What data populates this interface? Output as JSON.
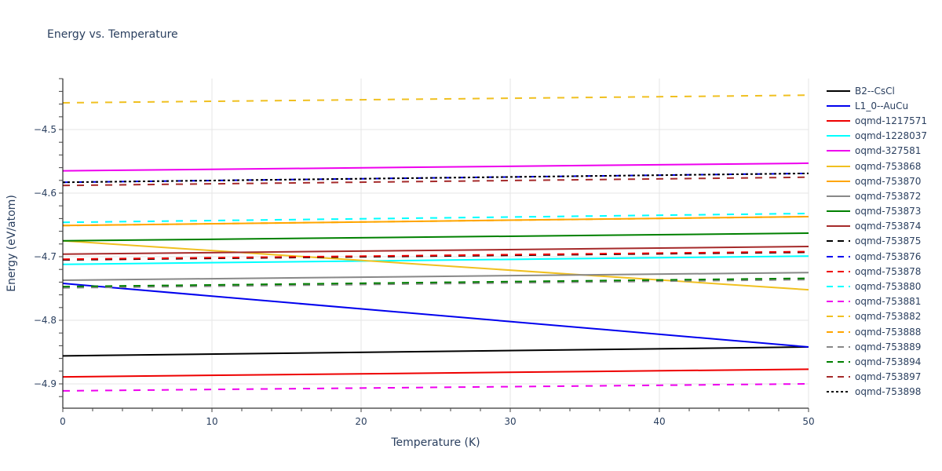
{
  "title": "Energy vs. Temperature",
  "chart_data": {
    "type": "line",
    "title": "Energy vs. Temperature",
    "xlabel": "Temperature (K)",
    "ylabel": "Energy (eV/atom)",
    "xlim": [
      0,
      50
    ],
    "ylim": [
      -4.94,
      -4.42
    ],
    "x_ticks": [
      0,
      10,
      20,
      30,
      40,
      50
    ],
    "y_ticks": [
      -4.9,
      -4.8,
      -4.7,
      -4.6,
      -4.5
    ],
    "y_tick_labels": [
      "−4.9",
      "−4.8",
      "−4.7",
      "−4.6",
      "−4.5"
    ],
    "grid": true,
    "legend_position": "right",
    "x": [
      0,
      50
    ],
    "series": [
      {
        "name": "B2--CsCl",
        "color": "#000000",
        "dash": "solid",
        "values": [
          -4.856,
          -4.842
        ]
      },
      {
        "name": "L1_0--AuCu",
        "color": "#0000ee",
        "dash": "solid",
        "values": [
          -4.742,
          -4.842
        ]
      },
      {
        "name": "oqmd-1217571",
        "color": "#ee0000",
        "dash": "solid",
        "values": [
          -4.889,
          -4.877
        ]
      },
      {
        "name": "oqmd-1228037",
        "color": "#00ffff",
        "dash": "solid",
        "values": [
          -4.712,
          -4.699
        ]
      },
      {
        "name": "oqmd-327581",
        "color": "#ee00ee",
        "dash": "solid",
        "values": [
          -4.565,
          -4.553
        ]
      },
      {
        "name": "oqmd-753868",
        "color": "#f0c020",
        "dash": "solid",
        "values": [
          -4.675,
          -4.752
        ]
      },
      {
        "name": "oqmd-753870",
        "color": "#ffa500",
        "dash": "solid",
        "values": [
          -4.651,
          -4.637
        ]
      },
      {
        "name": "oqmd-753872",
        "color": "#888888",
        "dash": "solid",
        "values": [
          -4.737,
          -4.725
        ]
      },
      {
        "name": "oqmd-753873",
        "color": "#008000",
        "dash": "solid",
        "values": [
          -4.675,
          -4.663
        ]
      },
      {
        "name": "oqmd-753874",
        "color": "#a52a2a",
        "dash": "solid",
        "values": [
          -4.696,
          -4.684
        ]
      },
      {
        "name": "oqmd-753875",
        "color": "#000000",
        "dash": "dash",
        "values": [
          -4.705,
          -4.693
        ]
      },
      {
        "name": "oqmd-753876",
        "color": "#0000ee",
        "dash": "dash",
        "values": [
          -4.583,
          -4.569
        ]
      },
      {
        "name": "oqmd-753878",
        "color": "#ee0000",
        "dash": "dash",
        "values": [
          -4.704,
          -4.692
        ]
      },
      {
        "name": "oqmd-753880",
        "color": "#00ffff",
        "dash": "dash",
        "values": [
          -4.646,
          -4.632
        ]
      },
      {
        "name": "oqmd-753881",
        "color": "#ee00ee",
        "dash": "dash",
        "values": [
          -4.911,
          -4.9
        ]
      },
      {
        "name": "oqmd-753882",
        "color": "#f0c020",
        "dash": "dash",
        "values": [
          -4.458,
          -4.446
        ]
      },
      {
        "name": "oqmd-753888",
        "color": "#ffa500",
        "dash": "dash",
        "values": [
          -4.651,
          -4.637
        ]
      },
      {
        "name": "oqmd-753889",
        "color": "#888888",
        "dash": "dash",
        "values": [
          -4.749,
          -4.736
        ]
      },
      {
        "name": "oqmd-753894",
        "color": "#008000",
        "dash": "dash",
        "values": [
          -4.747,
          -4.734
        ]
      },
      {
        "name": "oqmd-753897",
        "color": "#a52a2a",
        "dash": "dash",
        "values": [
          -4.588,
          -4.575
        ]
      },
      {
        "name": "oqmd-753898",
        "color": "#000000",
        "dash": "dot",
        "values": [
          -4.583,
          -4.569
        ]
      }
    ]
  }
}
